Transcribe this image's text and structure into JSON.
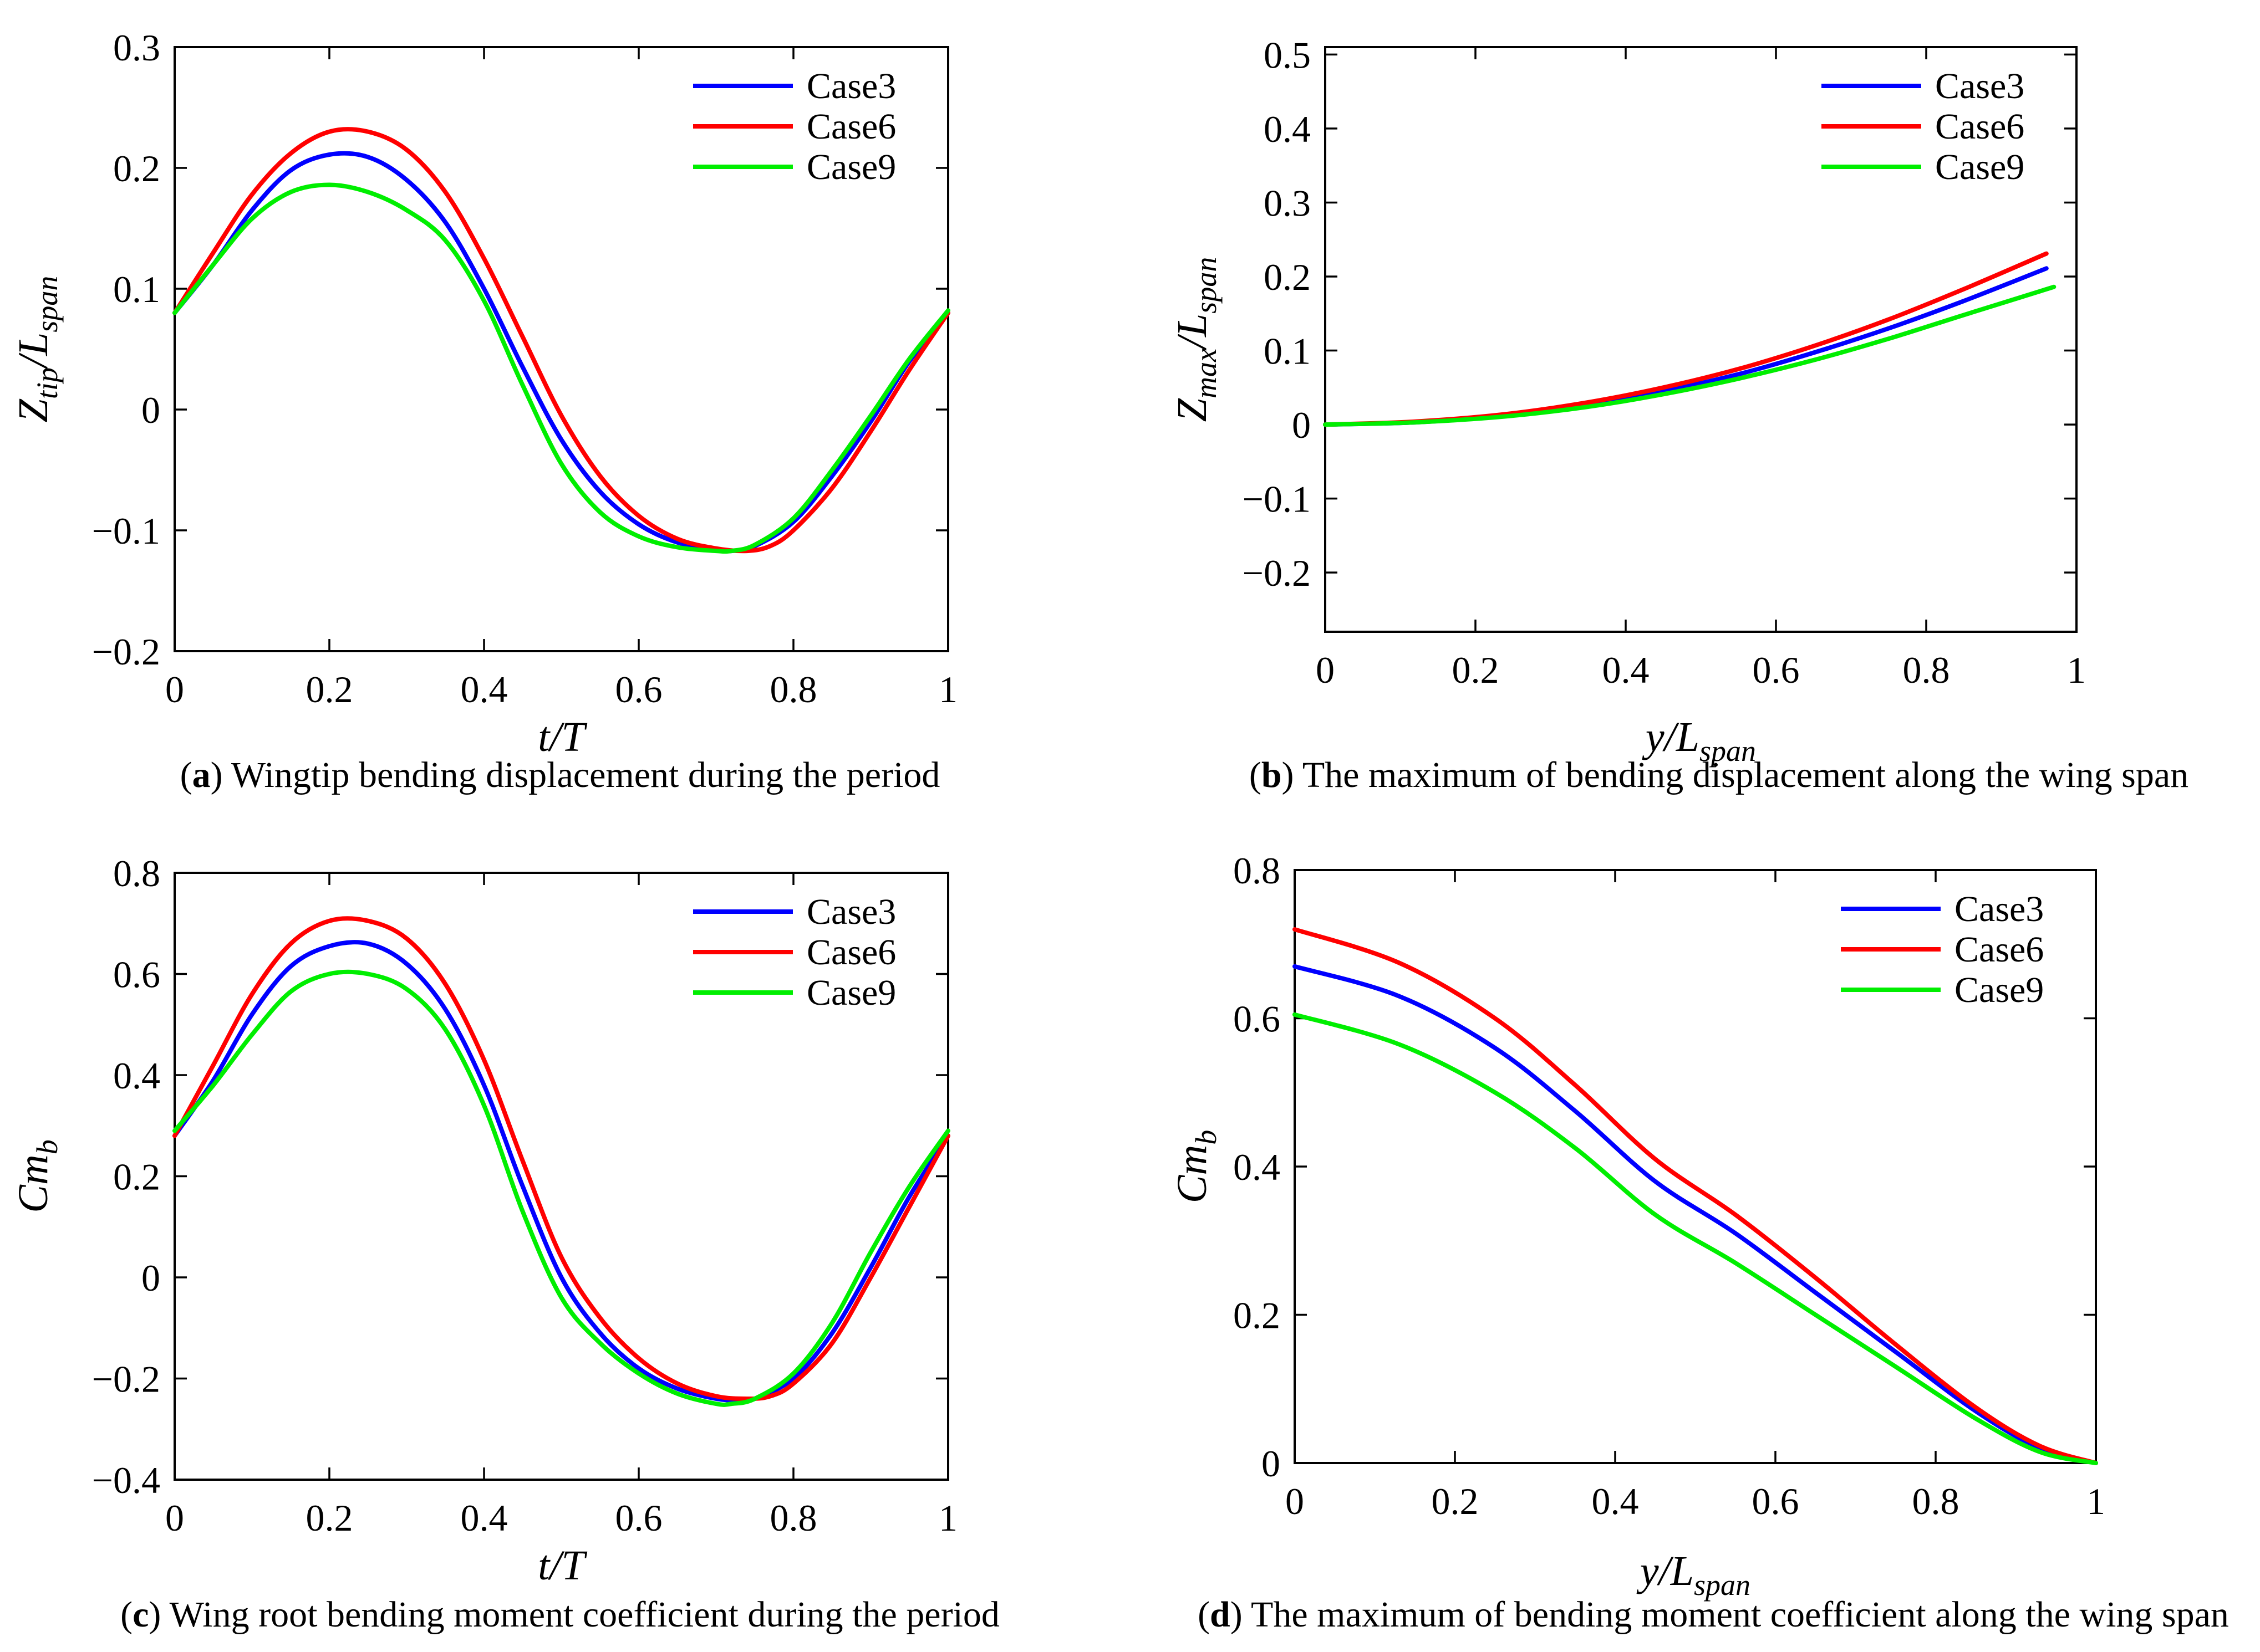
{
  "chart_data": [
    {
      "type": "line",
      "caption": {
        "letter": "a",
        "text": "Wingtip bending displacement during the period"
      },
      "xlabel": {
        "base": "t/T",
        "sub": ""
      },
      "ylabel": {
        "base": "Z",
        "sub1": "tip",
        "mid": "/L",
        "sub2": "span"
      },
      "xlim": [
        0,
        1
      ],
      "ylim": [
        -0.2,
        0.3
      ],
      "xticks": [
        0,
        0.2,
        0.4,
        0.6,
        0.8,
        1
      ],
      "xtick_labels": [
        "0",
        "0.2",
        "0.4",
        "0.6",
        "0.8",
        "1"
      ],
      "yticks": [
        -0.2,
        -0.1,
        0,
        0.1,
        0.2,
        0.3
      ],
      "ytick_labels": [
        "−0.2",
        "−0.1",
        "0",
        "0.1",
        "0.2",
        "0.3"
      ],
      "legend": "top-right",
      "grid": false,
      "series": [
        {
          "name": "Case3",
          "color": "#0000ff",
          "x": [
            0,
            0.05,
            0.1,
            0.15,
            0.2,
            0.25,
            0.3,
            0.35,
            0.4,
            0.45,
            0.5,
            0.55,
            0.6,
            0.65,
            0.7,
            0.72,
            0.75,
            0.8,
            0.85,
            0.9,
            0.95,
            1
          ],
          "y": [
            0.08,
            0.12,
            0.165,
            0.198,
            0.211,
            0.209,
            0.19,
            0.155,
            0.1,
            0.035,
            -0.025,
            -0.068,
            -0.095,
            -0.11,
            -0.116,
            -0.117,
            -0.113,
            -0.093,
            -0.055,
            -0.01,
            0.04,
            0.08
          ]
        },
        {
          "name": "Case6",
          "color": "#ff0000",
          "x": [
            0,
            0.05,
            0.1,
            0.15,
            0.2,
            0.25,
            0.3,
            0.35,
            0.4,
            0.45,
            0.5,
            0.55,
            0.6,
            0.65,
            0.7,
            0.74,
            0.77,
            0.8,
            0.85,
            0.9,
            0.95,
            1
          ],
          "y": [
            0.08,
            0.13,
            0.178,
            0.212,
            0.23,
            0.23,
            0.215,
            0.18,
            0.125,
            0.06,
            -0.005,
            -0.055,
            -0.088,
            -0.107,
            -0.115,
            -0.117,
            -0.113,
            -0.1,
            -0.065,
            -0.018,
            0.033,
            0.08
          ]
        },
        {
          "name": "Case9",
          "color": "#00ee00",
          "x": [
            0,
            0.05,
            0.1,
            0.15,
            0.2,
            0.25,
            0.3,
            0.35,
            0.4,
            0.45,
            0.5,
            0.55,
            0.6,
            0.65,
            0.7,
            0.72,
            0.75,
            0.8,
            0.85,
            0.9,
            0.95,
            1
          ],
          "y": [
            0.08,
            0.12,
            0.158,
            0.18,
            0.186,
            0.18,
            0.165,
            0.14,
            0.09,
            0.02,
            -0.045,
            -0.085,
            -0.105,
            -0.114,
            -0.117,
            -0.117,
            -0.112,
            -0.09,
            -0.05,
            -0.005,
            0.042,
            0.082
          ]
        }
      ]
    },
    {
      "type": "line",
      "caption": {
        "letter": "b",
        "text": "The maximum of bending displacement along the wing span"
      },
      "xlabel": {
        "base": "y/L",
        "sub": "span"
      },
      "ylabel": {
        "base": "Z",
        "sub1": "max",
        "mid": "/L",
        "sub2": "span"
      },
      "xlim": [
        0,
        1
      ],
      "ylim": [
        -0.28,
        0.51
      ],
      "xticks": [
        0,
        0.2,
        0.4,
        0.6,
        0.8,
        1
      ],
      "xtick_labels": [
        "0",
        "0.2",
        "0.4",
        "0.6",
        "0.8",
        "1"
      ],
      "yticks": [
        -0.2,
        -0.1,
        0,
        0.1,
        0.2,
        0.3,
        0.4,
        0.5
      ],
      "ytick_labels": [
        "−0.2",
        "−0.1",
        "0",
        "0.1",
        "0.2",
        "0.3",
        "0.4",
        "0.5"
      ],
      "legend": "top-right",
      "grid": false,
      "series": [
        {
          "name": "Case3",
          "color": "#0000ff",
          "x": [
            0,
            0.12,
            0.24,
            0.35,
            0.45,
            0.55,
            0.65,
            0.75,
            0.85,
            0.96
          ],
          "y": [
            0,
            0.003,
            0.012,
            0.027,
            0.045,
            0.068,
            0.097,
            0.13,
            0.167,
            0.211
          ]
        },
        {
          "name": "Case6",
          "color": "#ff0000",
          "x": [
            0,
            0.12,
            0.24,
            0.35,
            0.45,
            0.55,
            0.65,
            0.75,
            0.85,
            0.96
          ],
          "y": [
            0,
            0.004,
            0.014,
            0.03,
            0.05,
            0.075,
            0.106,
            0.142,
            0.183,
            0.231
          ]
        },
        {
          "name": "Case9",
          "color": "#00ee00",
          "x": [
            0,
            0.12,
            0.24,
            0.35,
            0.45,
            0.55,
            0.65,
            0.75,
            0.85,
            0.97
          ],
          "y": [
            0,
            0.003,
            0.011,
            0.024,
            0.041,
            0.062,
            0.087,
            0.116,
            0.148,
            0.186
          ]
        }
      ]
    },
    {
      "type": "line",
      "caption": {
        "letter": "c",
        "text": "Wing root bending moment coefficient during the period"
      },
      "xlabel": {
        "base": "t/T",
        "sub": ""
      },
      "ylabel": {
        "base": "Cm",
        "sub1": "b",
        "mid": "",
        "sub2": ""
      },
      "xlim": [
        0,
        1
      ],
      "ylim": [
        -0.4,
        0.8
      ],
      "xticks": [
        0,
        0.2,
        0.4,
        0.6,
        0.8,
        1
      ],
      "xtick_labels": [
        "0",
        "0.2",
        "0.4",
        "0.6",
        "0.8",
        "1"
      ],
      "yticks": [
        -0.4,
        -0.2,
        0,
        0.2,
        0.4,
        0.6,
        0.8
      ],
      "ytick_labels": [
        "−0.4",
        "−0.2",
        "0",
        "0.2",
        "0.4",
        "0.6",
        "0.8"
      ],
      "legend": "top-right",
      "grid": false,
      "series": [
        {
          "name": "Case3",
          "color": "#0000ff",
          "x": [
            0,
            0.05,
            0.1,
            0.15,
            0.2,
            0.25,
            0.3,
            0.35,
            0.4,
            0.45,
            0.5,
            0.55,
            0.6,
            0.65,
            0.7,
            0.73,
            0.75,
            0.8,
            0.85,
            0.9,
            0.95,
            1
          ],
          "y": [
            0.28,
            0.39,
            0.52,
            0.615,
            0.655,
            0.66,
            0.62,
            0.53,
            0.38,
            0.18,
            0.0,
            -0.11,
            -0.18,
            -0.22,
            -0.24,
            -0.243,
            -0.24,
            -0.2,
            -0.11,
            0.02,
            0.16,
            0.28
          ]
        },
        {
          "name": "Case6",
          "color": "#ff0000",
          "x": [
            0,
            0.05,
            0.1,
            0.15,
            0.2,
            0.25,
            0.3,
            0.35,
            0.4,
            0.45,
            0.5,
            0.55,
            0.6,
            0.65,
            0.7,
            0.74,
            0.77,
            0.8,
            0.85,
            0.9,
            0.95,
            1
          ],
          "y": [
            0.28,
            0.42,
            0.56,
            0.66,
            0.705,
            0.705,
            0.67,
            0.58,
            0.43,
            0.23,
            0.04,
            -0.08,
            -0.16,
            -0.21,
            -0.235,
            -0.24,
            -0.235,
            -0.21,
            -0.13,
            0.0,
            0.14,
            0.28
          ]
        },
        {
          "name": "Case9",
          "color": "#00ee00",
          "x": [
            0,
            0.05,
            0.1,
            0.15,
            0.2,
            0.25,
            0.3,
            0.35,
            0.4,
            0.45,
            0.5,
            0.55,
            0.6,
            0.65,
            0.7,
            0.72,
            0.75,
            0.8,
            0.85,
            0.9,
            0.95,
            1
          ],
          "y": [
            0.29,
            0.38,
            0.48,
            0.565,
            0.6,
            0.6,
            0.57,
            0.49,
            0.34,
            0.13,
            -0.04,
            -0.13,
            -0.19,
            -0.23,
            -0.25,
            -0.25,
            -0.24,
            -0.19,
            -0.09,
            0.05,
            0.18,
            0.29
          ]
        }
      ]
    },
    {
      "type": "line",
      "caption": {
        "letter": "d",
        "text": "The maximum of bending moment coefficient along the wing span"
      },
      "xlabel": {
        "base": "y/L",
        "sub": "span"
      },
      "ylabel": {
        "base": "Cm",
        "sub1": "b",
        "mid": "",
        "sub2": ""
      },
      "xlim": [
        0,
        1
      ],
      "ylim": [
        0,
        0.8
      ],
      "xticks": [
        0,
        0.2,
        0.4,
        0.6,
        0.8,
        1
      ],
      "xtick_labels": [
        "0",
        "0.2",
        "0.4",
        "0.6",
        "0.8",
        "1"
      ],
      "yticks": [
        0,
        0.2,
        0.4,
        0.6,
        0.8
      ],
      "ytick_labels": [
        "0",
        "0.2",
        "0.4",
        "0.6",
        "0.8"
      ],
      "legend": "top-right",
      "grid": false,
      "series": [
        {
          "name": "Case3",
          "color": "#0000ff",
          "x": [
            0,
            0.13,
            0.25,
            0.35,
            0.45,
            0.55,
            0.65,
            0.75,
            0.85,
            0.93,
            1
          ],
          "y": [
            0.67,
            0.63,
            0.56,
            0.475,
            0.38,
            0.31,
            0.23,
            0.15,
            0.07,
            0.02,
            0
          ]
        },
        {
          "name": "Case6",
          "color": "#ff0000",
          "x": [
            0,
            0.13,
            0.25,
            0.35,
            0.45,
            0.55,
            0.65,
            0.75,
            0.85,
            0.93,
            1
          ],
          "y": [
            0.72,
            0.675,
            0.6,
            0.51,
            0.41,
            0.335,
            0.25,
            0.16,
            0.075,
            0.023,
            0
          ]
        },
        {
          "name": "Case9",
          "color": "#00ee00",
          "x": [
            0,
            0.13,
            0.25,
            0.35,
            0.45,
            0.55,
            0.65,
            0.75,
            0.85,
            0.93,
            1
          ],
          "y": [
            0.605,
            0.565,
            0.5,
            0.425,
            0.335,
            0.27,
            0.2,
            0.13,
            0.06,
            0.015,
            0
          ]
        }
      ]
    }
  ]
}
